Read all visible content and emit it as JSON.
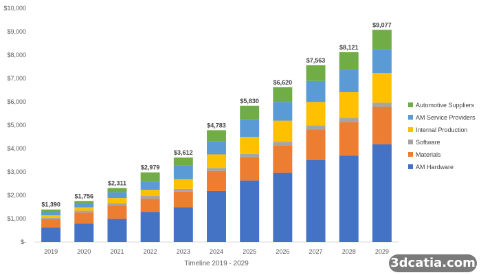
{
  "chart_data": {
    "type": "bar",
    "stacked": true,
    "categories": [
      "2019",
      "2020",
      "2021",
      "2022",
      "2023",
      "2024",
      "2025",
      "2026",
      "2027",
      "2028",
      "2029"
    ],
    "series": [
      {
        "name": "AM Hardware",
        "color": "#4472C4",
        "values": [
          620,
          790,
          990,
          1290,
          1490,
          2180,
          2630,
          2960,
          3500,
          3700,
          4180
        ]
      },
      {
        "name": "Materials",
        "color": "#ED7D31",
        "values": [
          360,
          470,
          570,
          560,
          660,
          860,
          990,
          1180,
          1310,
          1430,
          1600
        ]
      },
      {
        "name": "Software",
        "color": "#A5A5A5",
        "values": [
          60,
          80,
          100,
          120,
          120,
          130,
          150,
          150,
          180,
          180,
          180
        ]
      },
      {
        "name": "Internal Production",
        "color": "#FFC000",
        "values": [
          100,
          140,
          220,
          260,
          420,
          580,
          730,
          900,
          1000,
          1100,
          1270
        ]
      },
      {
        "name": "AM Service Providers",
        "color": "#5B9BD5",
        "values": [
          140,
          180,
          250,
          380,
          580,
          570,
          760,
          800,
          900,
          960,
          1030
        ]
      },
      {
        "name": "Automotive Suppliers",
        "color": "#70AD47",
        "values": [
          110,
          96,
          181,
          369,
          342,
          463,
          570,
          630,
          673,
          751,
          817
        ]
      }
    ],
    "totals": [
      "$1,390",
      "$1,756",
      "$2,311",
      "$2,979",
      "$3,612",
      "$4,783",
      "$5,830",
      "$6,620",
      "$7,563",
      "$8,121",
      "$9,077"
    ],
    "total_values": [
      1390,
      1756,
      2311,
      2979,
      3612,
      4783,
      5830,
      6620,
      7563,
      8121,
      9077
    ],
    "y_ticks": [
      0,
      1000,
      2000,
      3000,
      4000,
      5000,
      6000,
      7000,
      8000,
      9000,
      10000
    ],
    "y_tick_labels": [
      "$-",
      "$1,000",
      "$2,000",
      "$3,000",
      "$4,000",
      "$5,000",
      "$6,000",
      "$7,000",
      "$8,000",
      "$9,000",
      "$10,000"
    ],
    "ylim": [
      0,
      10000
    ],
    "xlabel": "Timeline 2019 - 2029",
    "ylabel": "",
    "title": "",
    "grid": false,
    "legend_position": "right",
    "legend_order": [
      "Automotive Suppliers",
      "AM Service Providers",
      "Internal Production",
      "Software",
      "Materials",
      "AM Hardware"
    ]
  },
  "watermark": {
    "text": "3dcatia.com"
  }
}
